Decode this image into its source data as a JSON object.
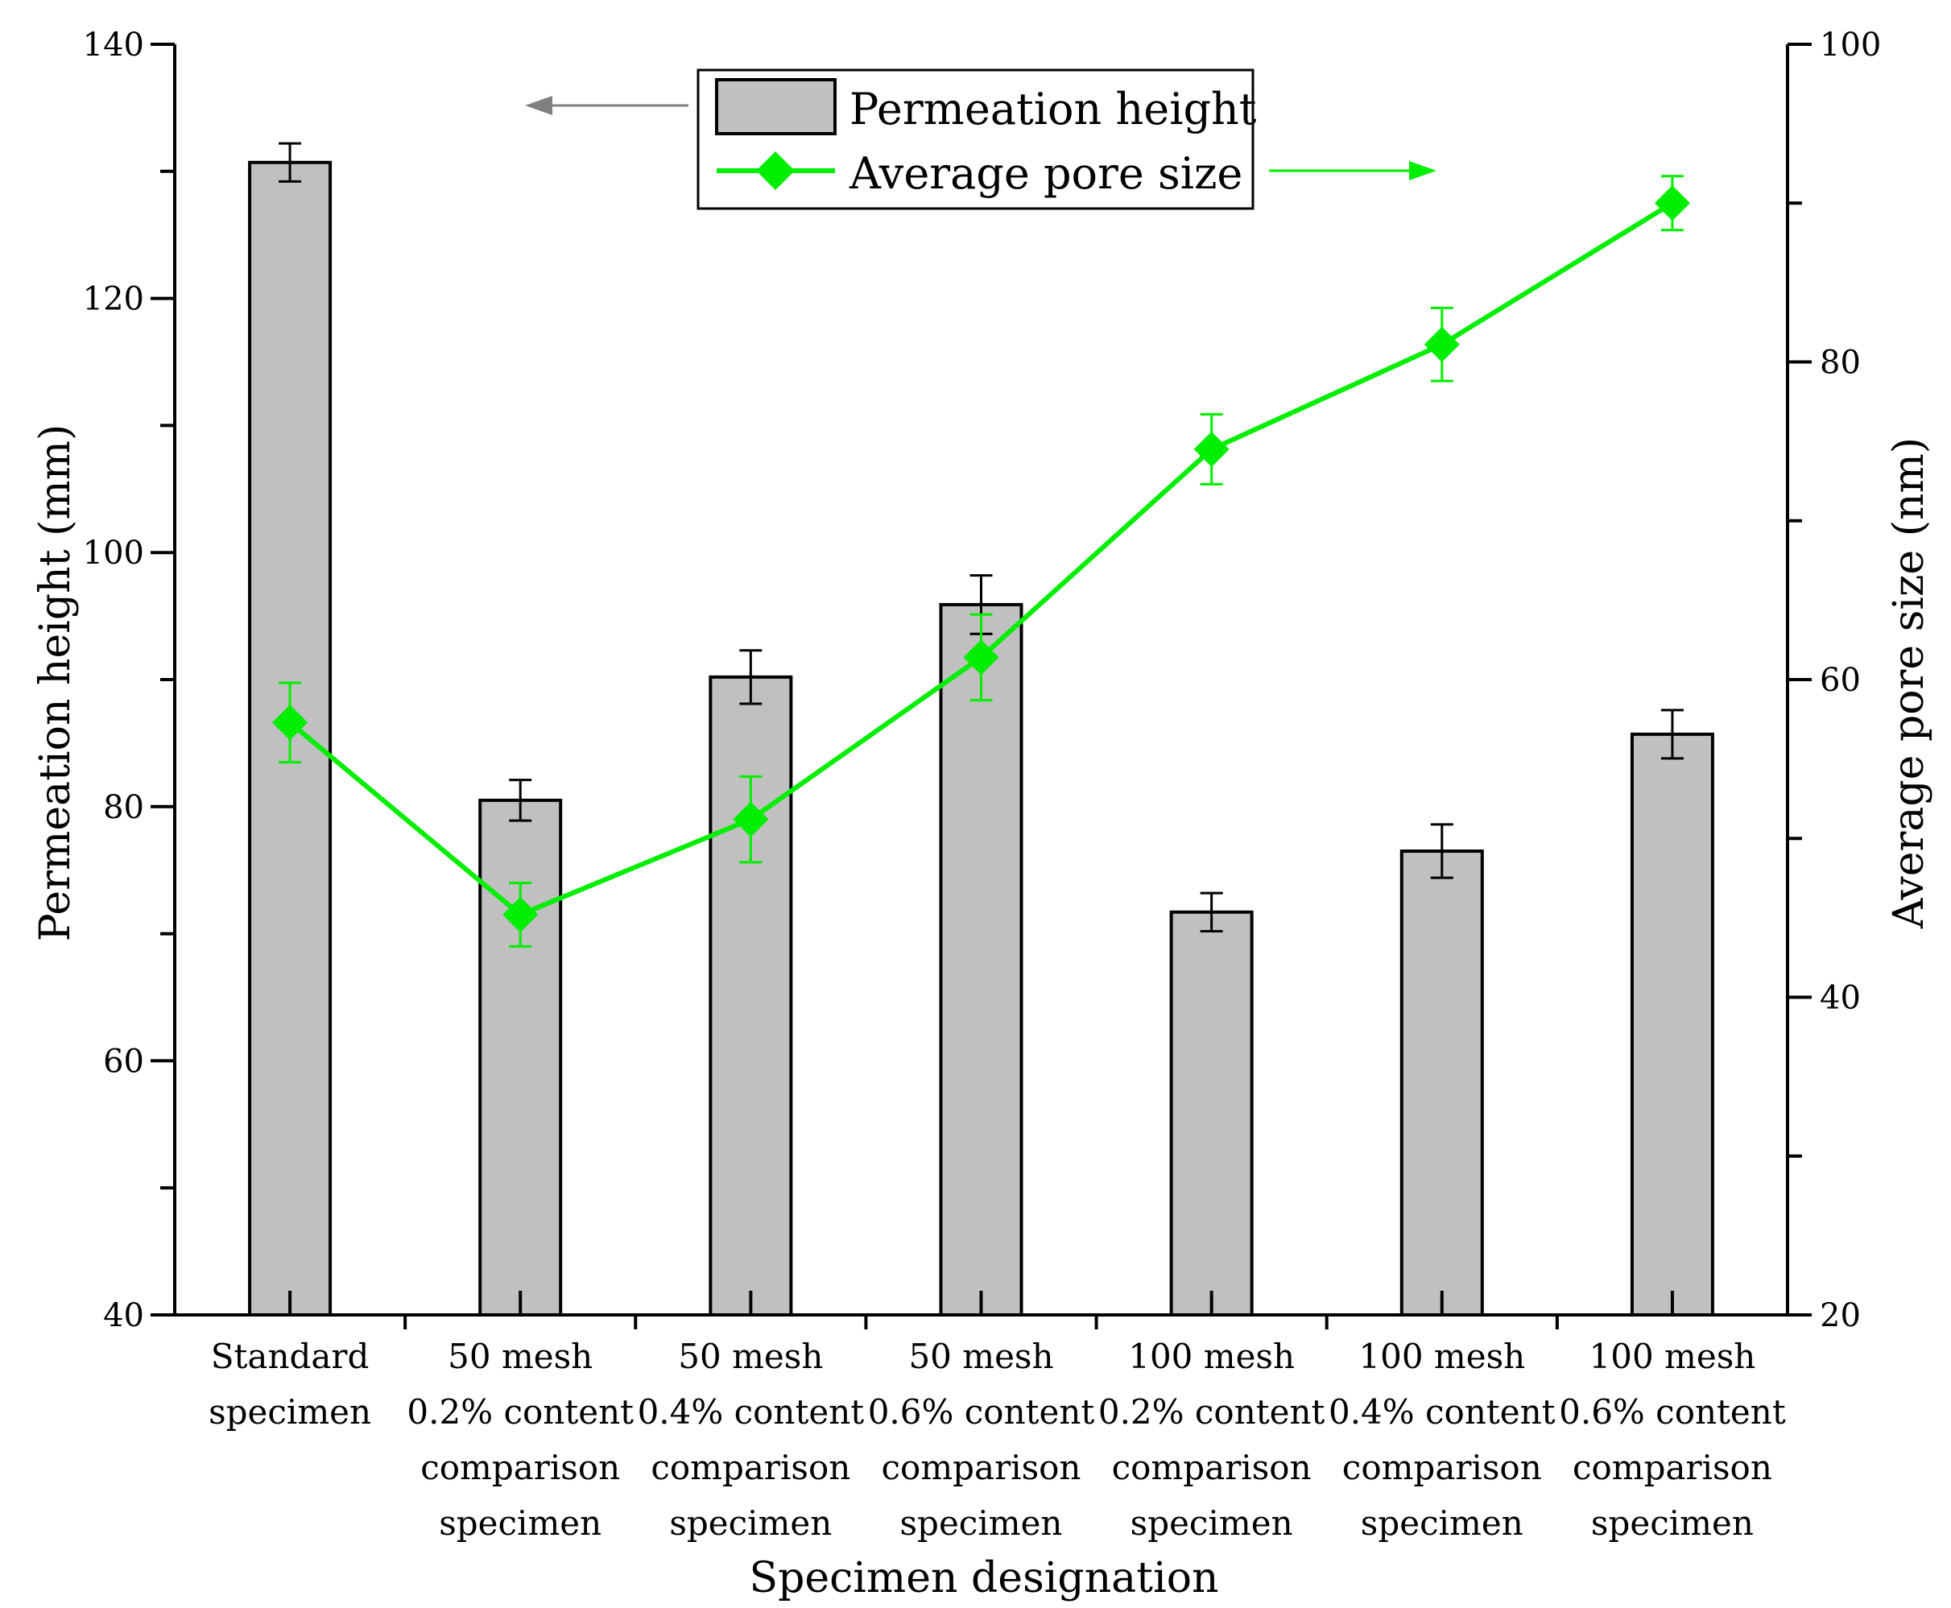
{
  "chart_data": {
    "type": "bar+line",
    "xlabel": "Specimen designation",
    "categories": [
      [
        "Standard",
        "specimen"
      ],
      [
        "50 mesh",
        "0.2% content",
        "comparison",
        "specimen"
      ],
      [
        "50 mesh",
        "0.4% content",
        "comparison",
        "specimen"
      ],
      [
        "50 mesh",
        "0.6% content",
        "comparison",
        "specimen"
      ],
      [
        "100 mesh",
        "0.2% content",
        "comparison",
        "specimen"
      ],
      [
        "100 mesh",
        "0.4% content",
        "comparison",
        "specimen"
      ],
      [
        "100 mesh",
        "0.6% content",
        "comparison",
        "specimen"
      ]
    ],
    "left_axis": {
      "label": "Permeation height (mm)",
      "range": [
        40,
        140
      ],
      "ticks": [
        40,
        60,
        80,
        100,
        120,
        140
      ],
      "tick_labels": [
        "40",
        "60",
        "80",
        "100",
        "120",
        "140"
      ],
      "minor_ticks": [
        50,
        70,
        90,
        110,
        130
      ]
    },
    "right_axis": {
      "label": "Average pore size (nm)",
      "range": [
        20,
        100
      ],
      "ticks": [
        20,
        40,
        60,
        80,
        100
      ],
      "tick_labels": [
        "20",
        "40",
        "60",
        "80",
        "100"
      ],
      "minor_ticks": [
        30,
        50,
        70,
        90
      ]
    },
    "series": [
      {
        "name": "Permeation height",
        "kind": "bar",
        "axis": "left",
        "color": "#c0c0c0",
        "values": [
          130.7,
          80.5,
          90.2,
          95.9,
          71.7,
          76.5,
          85.7
        ],
        "errors": [
          1.5,
          1.6,
          2.1,
          2.3,
          1.5,
          2.1,
          1.9
        ]
      },
      {
        "name": "Average pore size",
        "kind": "line",
        "axis": "right",
        "marker": "diamond",
        "color": "#00ee00",
        "values": [
          57.3,
          45.2,
          51.2,
          61.4,
          74.5,
          81.1,
          90.0
        ],
        "errors": [
          2.5,
          2.0,
          2.7,
          2.7,
          2.2,
          2.3,
          1.7
        ]
      }
    ],
    "legend": {
      "placement": "top-center",
      "entries": [
        "Permeation height",
        "Average pore size"
      ]
    },
    "annotations": [
      {
        "type": "arrow",
        "direction": "left",
        "color": "#808080",
        "refers_to": "Permeation height"
      },
      {
        "type": "arrow",
        "direction": "right",
        "color": "#00ee00",
        "refers_to": "Average pore size"
      }
    ]
  }
}
